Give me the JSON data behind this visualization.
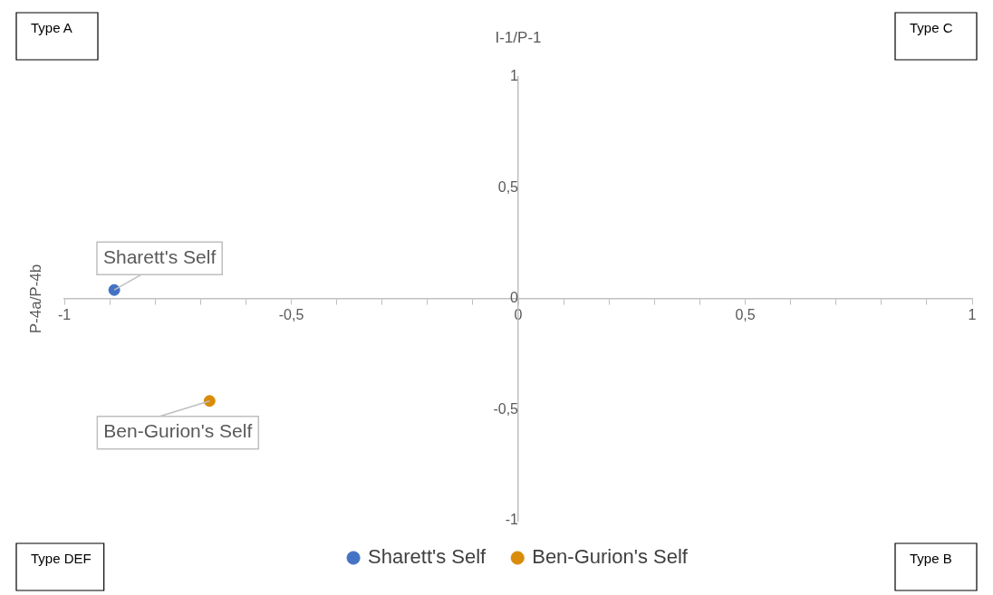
{
  "chart_data": {
    "type": "scatter",
    "xlabel": "I-1/P-1",
    "ylabel": "P-4a/P-4b",
    "series": [
      {
        "name": "Sharett's Self",
        "color": "#4472c4",
        "x": [
          -0.89
        ],
        "values": [
          0.04
        ]
      },
      {
        "name": "Ben-Gurion's Self",
        "color": "#d98c0a",
        "x": [
          -0.68
        ],
        "values": [
          -0.46
        ]
      }
    ],
    "xlim": [
      -1,
      1
    ],
    "ylim": [
      -1,
      1
    ],
    "xticks": [
      {
        "value": -1,
        "label": "-1"
      },
      {
        "value": -0.9,
        "label": null
      },
      {
        "value": -0.8,
        "label": null
      },
      {
        "value": -0.7,
        "label": null
      },
      {
        "value": -0.6,
        "label": null
      },
      {
        "value": -0.5,
        "label": "-0,5"
      },
      {
        "value": -0.4,
        "label": null
      },
      {
        "value": -0.3,
        "label": null
      },
      {
        "value": -0.2,
        "label": null
      },
      {
        "value": -0.1,
        "label": null
      },
      {
        "value": 0,
        "label": "0"
      },
      {
        "value": 0.1,
        "label": null
      },
      {
        "value": 0.2,
        "label": null
      },
      {
        "value": 0.3,
        "label": null
      },
      {
        "value": 0.4,
        "label": null
      },
      {
        "value": 0.5,
        "label": "0,5"
      },
      {
        "value": 0.6,
        "label": null
      },
      {
        "value": 0.7,
        "label": null
      },
      {
        "value": 0.8,
        "label": null
      },
      {
        "value": 0.9,
        "label": null
      },
      {
        "value": 1,
        "label": "1"
      }
    ],
    "yticks": [
      {
        "value": -1,
        "label": "-1"
      },
      {
        "value": -0.5,
        "label": "-0,5"
      },
      {
        "value": 0,
        "label": "0"
      },
      {
        "value": 0.5,
        "label": "0,5"
      },
      {
        "value": 1,
        "label": "1"
      }
    ],
    "annotations": [
      "Type A",
      "Type C",
      "Type DEF",
      "Type B",
      {
        "text": "Sharett's Self",
        "x": -0.89,
        "y": 0.04
      },
      {
        "text": "Ben-Gurion's Self",
        "x": -0.68,
        "y": -0.46
      }
    ],
    "grid": false,
    "marker": "circle",
    "legend": "bottom"
  }
}
